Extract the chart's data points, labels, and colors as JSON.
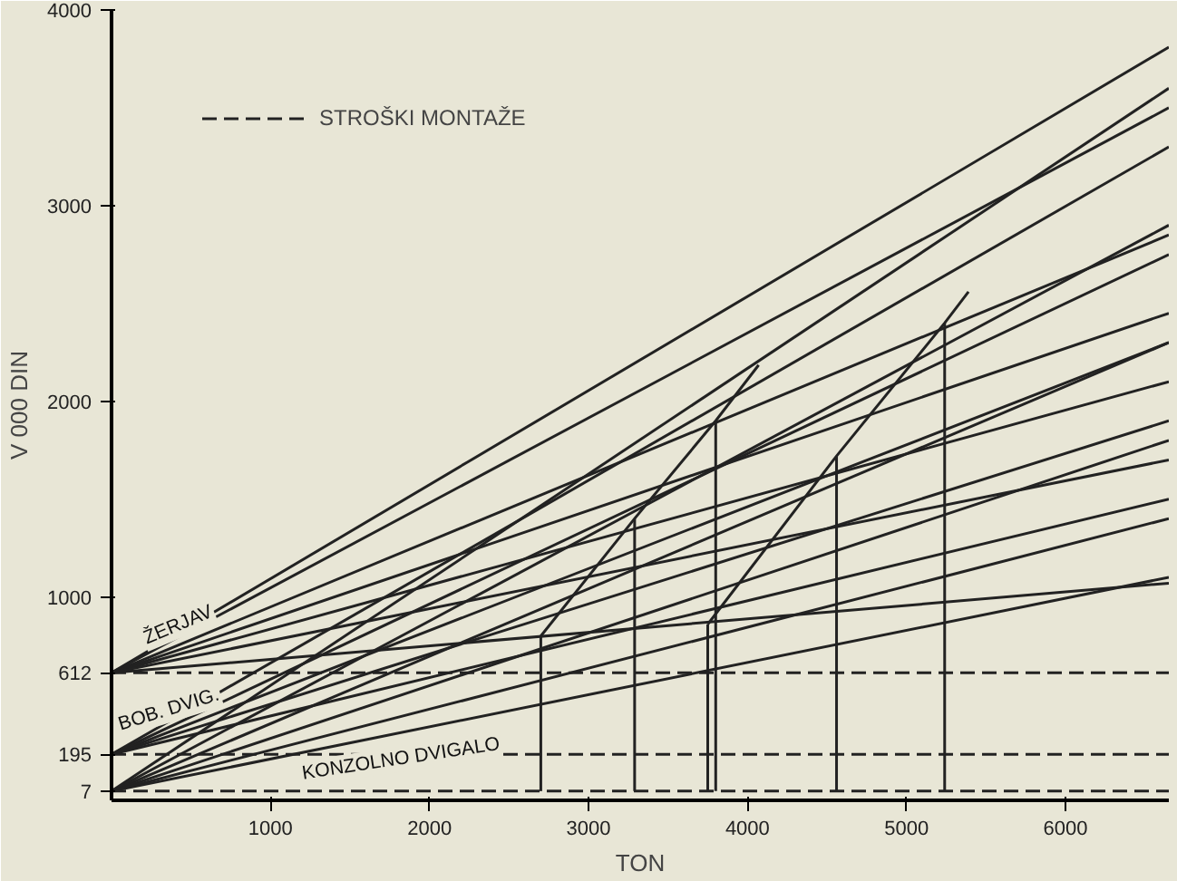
{
  "chart_data": {
    "type": "line",
    "xlabel": "TON",
    "ylabel": "V 000 DIN",
    "xlim": [
      0,
      6650
    ],
    "ylim": [
      -40,
      4000
    ],
    "xticks": [
      1000,
      2000,
      3000,
      4000,
      5000,
      6000
    ],
    "yticks": [
      7,
      195,
      612,
      1000,
      2000,
      3000,
      4000
    ],
    "grid": false,
    "legend": "top left",
    "line_style": "solid",
    "marker": "none",
    "annotations": [
      "ŽERJAV",
      "BOB. DVIG.",
      "KONZOLNO DVIGALO"
    ],
    "ref_lines": [
      {
        "axis": "y",
        "value": 612,
        "label": "STROŠKI MONTAŽE",
        "line_style": "dashed",
        "color": "#222222"
      },
      {
        "axis": "y",
        "value": 195,
        "line_style": "dashed",
        "color": "#222222"
      },
      {
        "axis": "y",
        "value": 7,
        "line_style": "dashed",
        "color": "#222222"
      }
    ],
    "series": [
      {
        "color": "#222222",
        "x": [
          0,
          6650
        ],
        "values": [
          612,
          3810
        ]
      },
      {
        "color": "#222222",
        "x": [
          0,
          6650
        ],
        "values": [
          612,
          3500
        ]
      },
      {
        "color": "#222222",
        "x": [
          0,
          6650
        ],
        "values": [
          612,
          2850
        ]
      },
      {
        "color": "#222222",
        "x": [
          0,
          6650
        ],
        "values": [
          612,
          2450
        ]
      },
      {
        "color": "#222222",
        "x": [
          0,
          6650
        ],
        "values": [
          612,
          2100
        ]
      },
      {
        "color": "#222222",
        "x": [
          0,
          6650
        ],
        "values": [
          612,
          1700
        ]
      },
      {
        "color": "#222222",
        "x": [
          0,
          6650
        ],
        "values": [
          612,
          1070
        ]
      },
      {
        "color": "#222222",
        "x": [
          0,
          6650
        ],
        "values": [
          195,
          3300
        ]
      },
      {
        "color": "#222222",
        "x": [
          0,
          6650
        ],
        "values": [
          195,
          2750
        ]
      },
      {
        "color": "#222222",
        "x": [
          0,
          6650
        ],
        "values": [
          195,
          2300
        ]
      },
      {
        "color": "#222222",
        "x": [
          0,
          6650
        ],
        "values": [
          195,
          1900
        ]
      },
      {
        "color": "#222222",
        "x": [
          0,
          6650
        ],
        "values": [
          195,
          1500
        ]
      },
      {
        "color": "#222222",
        "x": [
          0,
          6650
        ],
        "values": [
          7,
          3600
        ]
      },
      {
        "color": "#222222",
        "x": [
          0,
          6650
        ],
        "values": [
          7,
          2900
        ]
      },
      {
        "color": "#222222",
        "x": [
          0,
          6650
        ],
        "values": [
          7,
          2300
        ]
      },
      {
        "color": "#222222",
        "x": [
          0,
          6650
        ],
        "values": [
          7,
          1800
        ]
      },
      {
        "color": "#222222",
        "x": [
          0,
          6650
        ],
        "values": [
          7,
          1400
        ]
      },
      {
        "color": "#222222",
        "x": [
          0,
          6650
        ],
        "values": [
          7,
          1100
        ]
      },
      {
        "color": "#222222",
        "x": [
          2700,
          3290,
          3800,
          4070
        ],
        "values": [
          800,
          1400,
          1900,
          2185
        ]
      },
      {
        "color": "#222222",
        "x": [
          3750,
          4560,
          5240,
          5390
        ],
        "values": [
          860,
          1720,
          2400,
          2560
        ]
      },
      {
        "color": "#222222",
        "x": [
          2700,
          2700
        ],
        "values": [
          7,
          800
        ]
      },
      {
        "color": "#222222",
        "x": [
          3290,
          3290
        ],
        "values": [
          7,
          1400
        ]
      },
      {
        "color": "#222222",
        "x": [
          3750,
          3750
        ],
        "values": [
          7,
          860
        ]
      },
      {
        "color": "#222222",
        "x": [
          3800,
          3800
        ],
        "values": [
          7,
          1900
        ]
      },
      {
        "color": "#222222",
        "x": [
          4560,
          4560
        ],
        "values": [
          7,
          1720
        ]
      },
      {
        "color": "#222222",
        "x": [
          5240,
          5240
        ],
        "values": [
          7,
          2400
        ]
      }
    ]
  }
}
